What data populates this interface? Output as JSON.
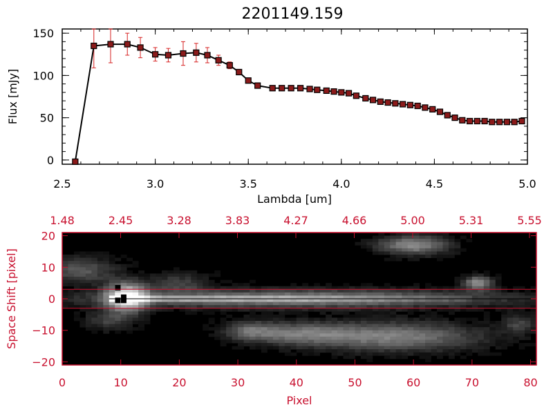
{
  "chart_data": [
    {
      "type": "line",
      "title": "2201149.159",
      "xlabel": "Lambda [um]",
      "ylabel": "Flux [mJy]",
      "xlim": [
        2.5,
        5.0
      ],
      "ylim": [
        -5,
        155
      ],
      "x_ticks": [
        "2.5",
        "3.0",
        "3.5",
        "4.0",
        "4.5",
        "5.0"
      ],
      "y_ticks": [
        "0",
        "50",
        "100",
        "150"
      ],
      "x_tick_values": [
        2.5,
        3.0,
        3.5,
        4.0,
        4.5,
        5.0
      ],
      "y_tick_values": [
        0,
        50,
        100,
        150
      ],
      "grid": false,
      "line_color": "#000000",
      "marker_color": "#8b1a1a",
      "errorbar_color": "#d62020",
      "series": [
        {
          "x": [
            2.57,
            2.67,
            2.76,
            2.85,
            2.92,
            3.0,
            3.07,
            3.15,
            3.22,
            3.28,
            3.34,
            3.4,
            3.45,
            3.5,
            3.55,
            3.63,
            3.68,
            3.73,
            3.78,
            3.83,
            3.87,
            3.92,
            3.96,
            4.0,
            4.04,
            4.08,
            4.13,
            4.17,
            4.21,
            4.25,
            4.29,
            4.33,
            4.37,
            4.41,
            4.45,
            4.49,
            4.53,
            4.57,
            4.61,
            4.65,
            4.69,
            4.73,
            4.77,
            4.81,
            4.85,
            4.89,
            4.93,
            4.97
          ],
          "y": [
            -2,
            135,
            137,
            137,
            133,
            125,
            124,
            126,
            127,
            124,
            118,
            112,
            104,
            94,
            88,
            85,
            85,
            85,
            85,
            84,
            83,
            82,
            81,
            80,
            79,
            76,
            73,
            71,
            69,
            68,
            67,
            66,
            65,
            64,
            62,
            60,
            57,
            53,
            50,
            47,
            46,
            46,
            46,
            45,
            45,
            45,
            45,
            46
          ],
          "yerr": [
            0,
            26,
            22,
            13,
            12,
            8,
            8,
            14,
            11,
            9,
            6,
            4,
            3,
            3,
            2,
            2,
            2,
            2,
            2,
            2,
            2,
            2,
            2,
            2,
            2,
            2,
            2,
            2,
            2,
            2,
            2,
            2,
            2,
            2,
            2,
            2,
            2,
            2,
            2,
            2,
            2,
            2,
            2,
            2,
            2,
            2,
            2,
            2
          ]
        }
      ]
    },
    {
      "type": "heatmap",
      "xlabel": "Pixel",
      "ylabel": "Space Shift [pixel]",
      "xlim": [
        0,
        81
      ],
      "ylim": [
        -21,
        21
      ],
      "x_ticks": [
        "0",
        "10",
        "20",
        "30",
        "40",
        "50",
        "60",
        "70",
        "80"
      ],
      "x_tick_values": [
        0,
        10,
        20,
        30,
        40,
        50,
        60,
        70,
        80
      ],
      "y_ticks": [
        "20",
        "10",
        "0",
        "−10",
        "−20"
      ],
      "y_tick_values": [
        20,
        10,
        0,
        -10,
        -20
      ],
      "top_axis_ticks": [
        "1.48",
        "2.45",
        "3.28",
        "3.83",
        "4.27",
        "4.66",
        "5.00",
        "5.31",
        "5.55"
      ],
      "aperture_lines_y": [
        3,
        -3
      ],
      "axis_color": "#c8102e",
      "colormap": "grayscale"
    }
  ]
}
